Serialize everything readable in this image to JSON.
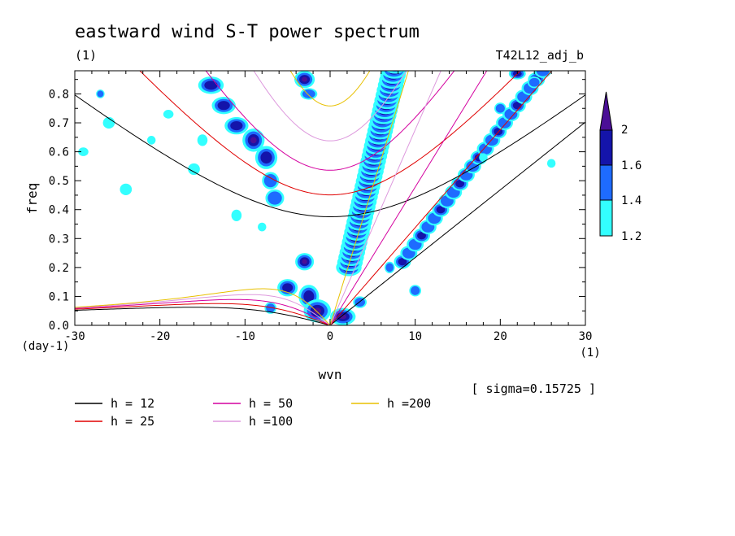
{
  "chart_data": {
    "type": "contour",
    "title": "eastward wind S-T power spectrum",
    "subtitle_left": "(1)",
    "subtitle_right": "T42L12_adj_b",
    "xlabel": "wvn",
    "ylabel": "freq",
    "x_unit": "(1)",
    "y_unit": "(day-1)",
    "xlim": [
      -30,
      30
    ],
    "ylim": [
      0,
      0.88
    ],
    "x_ticks": [
      "-30",
      "-20",
      "-10",
      "0",
      "10",
      "20",
      "30"
    ],
    "y_ticks": [
      "0.0",
      "0.1",
      "0.2",
      "0.3",
      "0.4",
      "0.5",
      "0.6",
      "0.7",
      "0.8"
    ],
    "annotation": "[ sigma=0.15725 ]",
    "colorbar": {
      "levels": [
        "1.2",
        "1.4",
        "1.6",
        "2"
      ],
      "colors": [
        "#33ffff",
        "#1e6bff",
        "#1414aa",
        "#4b0f96"
      ]
    },
    "dispersion_curves": [
      {
        "label": "h = 12",
        "h": 12,
        "color": "#000000"
      },
      {
        "label": "h = 25",
        "h": 25,
        "color": "#e00000"
      },
      {
        "label": "h = 50",
        "h": 50,
        "color": "#d4009f"
      },
      {
        "label": "h =100",
        "h": 100,
        "color": "#dd99dd"
      },
      {
        "label": "h =200",
        "h": 200,
        "color": "#e8c000"
      }
    ]
  }
}
